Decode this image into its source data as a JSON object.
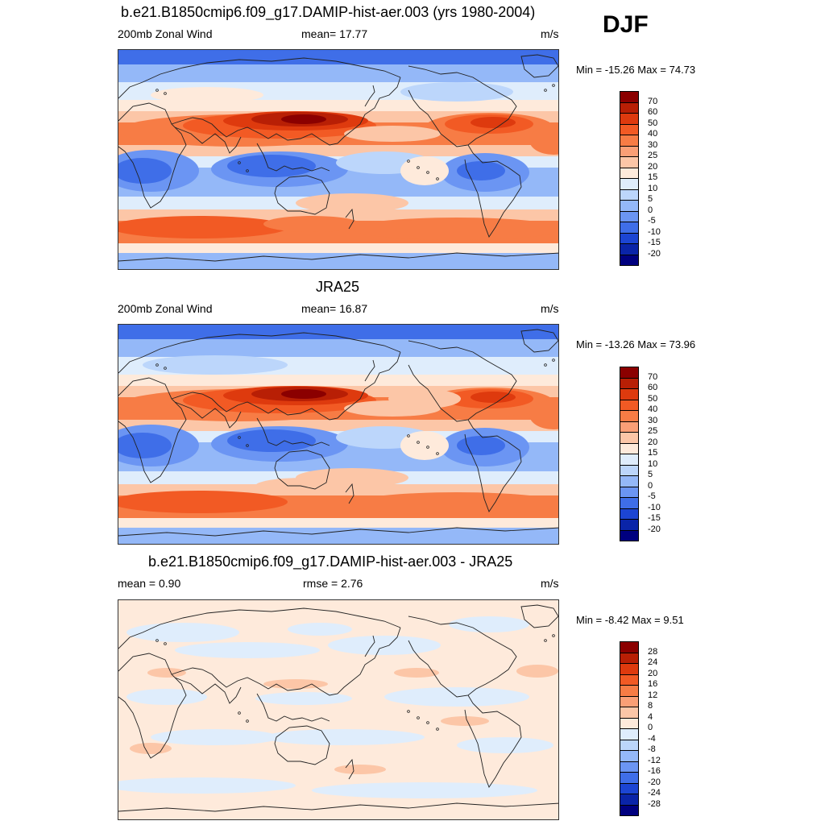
{
  "season": "DJF",
  "panels": [
    {
      "title": "b.e21.B1850cmip6.f09_g17.DAMIP-hist-aer.003 (yrs 1980-2004)",
      "left_label": "200mb Zonal Wind",
      "center_label": "mean=  17.77",
      "units": "m/s",
      "minmax": "Min = -15.26 Max =  74.73",
      "colorbar": "full",
      "style": "model"
    },
    {
      "title": "JRA25",
      "left_label": "200mb Zonal Wind",
      "center_label": "mean=  16.87",
      "units": "m/s",
      "minmax": "Min = -13.26 Max =  73.96",
      "colorbar": "full",
      "style": "obs"
    },
    {
      "title": "b.e21.B1850cmip6.f09_g17.DAMIP-hist-aer.003 - JRA25",
      "left_label": "mean =   0.90",
      "center_label": "rmse =   2.76",
      "units": "m/s",
      "minmax": "Min =  -8.42 Max =   9.51",
      "colorbar": "diff",
      "style": "diff"
    }
  ],
  "colorbars": {
    "full": {
      "labels": [
        "70",
        "60",
        "50",
        "40",
        "30",
        "25",
        "20",
        "15",
        "10",
        "5",
        "0",
        "-5",
        "-10",
        "-15",
        "-20"
      ],
      "colors": [
        "#8b0000",
        "#b81f05",
        "#de3a0e",
        "#f25a24",
        "#f77c45",
        "#fa9f76",
        "#fcc6a7",
        "#feeadb",
        "#dfedfc",
        "#bcd6fb",
        "#94b8f8",
        "#6b95f3",
        "#3f6ee8",
        "#1c45d3",
        "#0a24a8",
        "#00007f"
      ]
    },
    "diff": {
      "labels": [
        "28",
        "24",
        "20",
        "16",
        "12",
        "8",
        "4",
        "0",
        "-4",
        "-8",
        "-12",
        "-16",
        "-20",
        "-24",
        "-28"
      ],
      "colors": [
        "#8b0000",
        "#b81f05",
        "#de3a0e",
        "#f25a24",
        "#f77c45",
        "#fa9f76",
        "#fcc6a7",
        "#feeadb",
        "#dfedfc",
        "#bcd6fb",
        "#94b8f8",
        "#6b95f3",
        "#3f6ee8",
        "#1c45d3",
        "#0a24a8",
        "#00007f"
      ]
    }
  }
}
